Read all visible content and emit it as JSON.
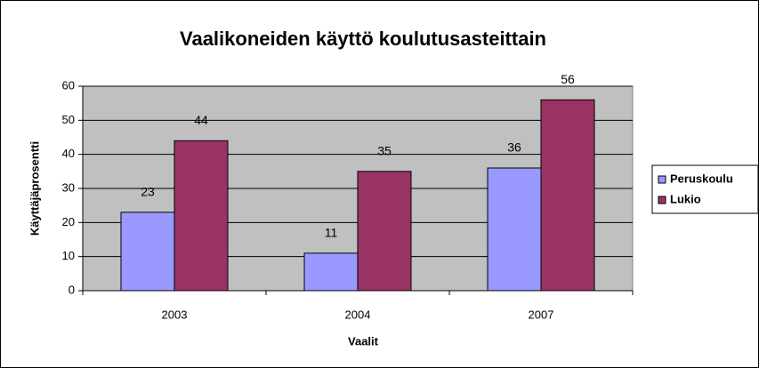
{
  "chart_data": {
    "type": "bar",
    "title": "Vaalikoneiden käyttö koulutusasteittain",
    "x_label": "Vaalit",
    "y_label": "Käyttäjäprosentti",
    "categories": [
      "2003",
      "2004",
      "2007"
    ],
    "series": [
      {
        "name": "Peruskoulu",
        "color": "#9999ff",
        "values": [
          23,
          11,
          36
        ]
      },
      {
        "name": "Lukio",
        "color": "#993366",
        "values": [
          44,
          35,
          56
        ]
      }
    ],
    "ylim": [
      0,
      60
    ],
    "yticks": [
      0,
      10,
      20,
      30,
      40,
      50,
      60
    ],
    "grid": true,
    "legend": "right",
    "plot_background": "#c0c0c0"
  }
}
